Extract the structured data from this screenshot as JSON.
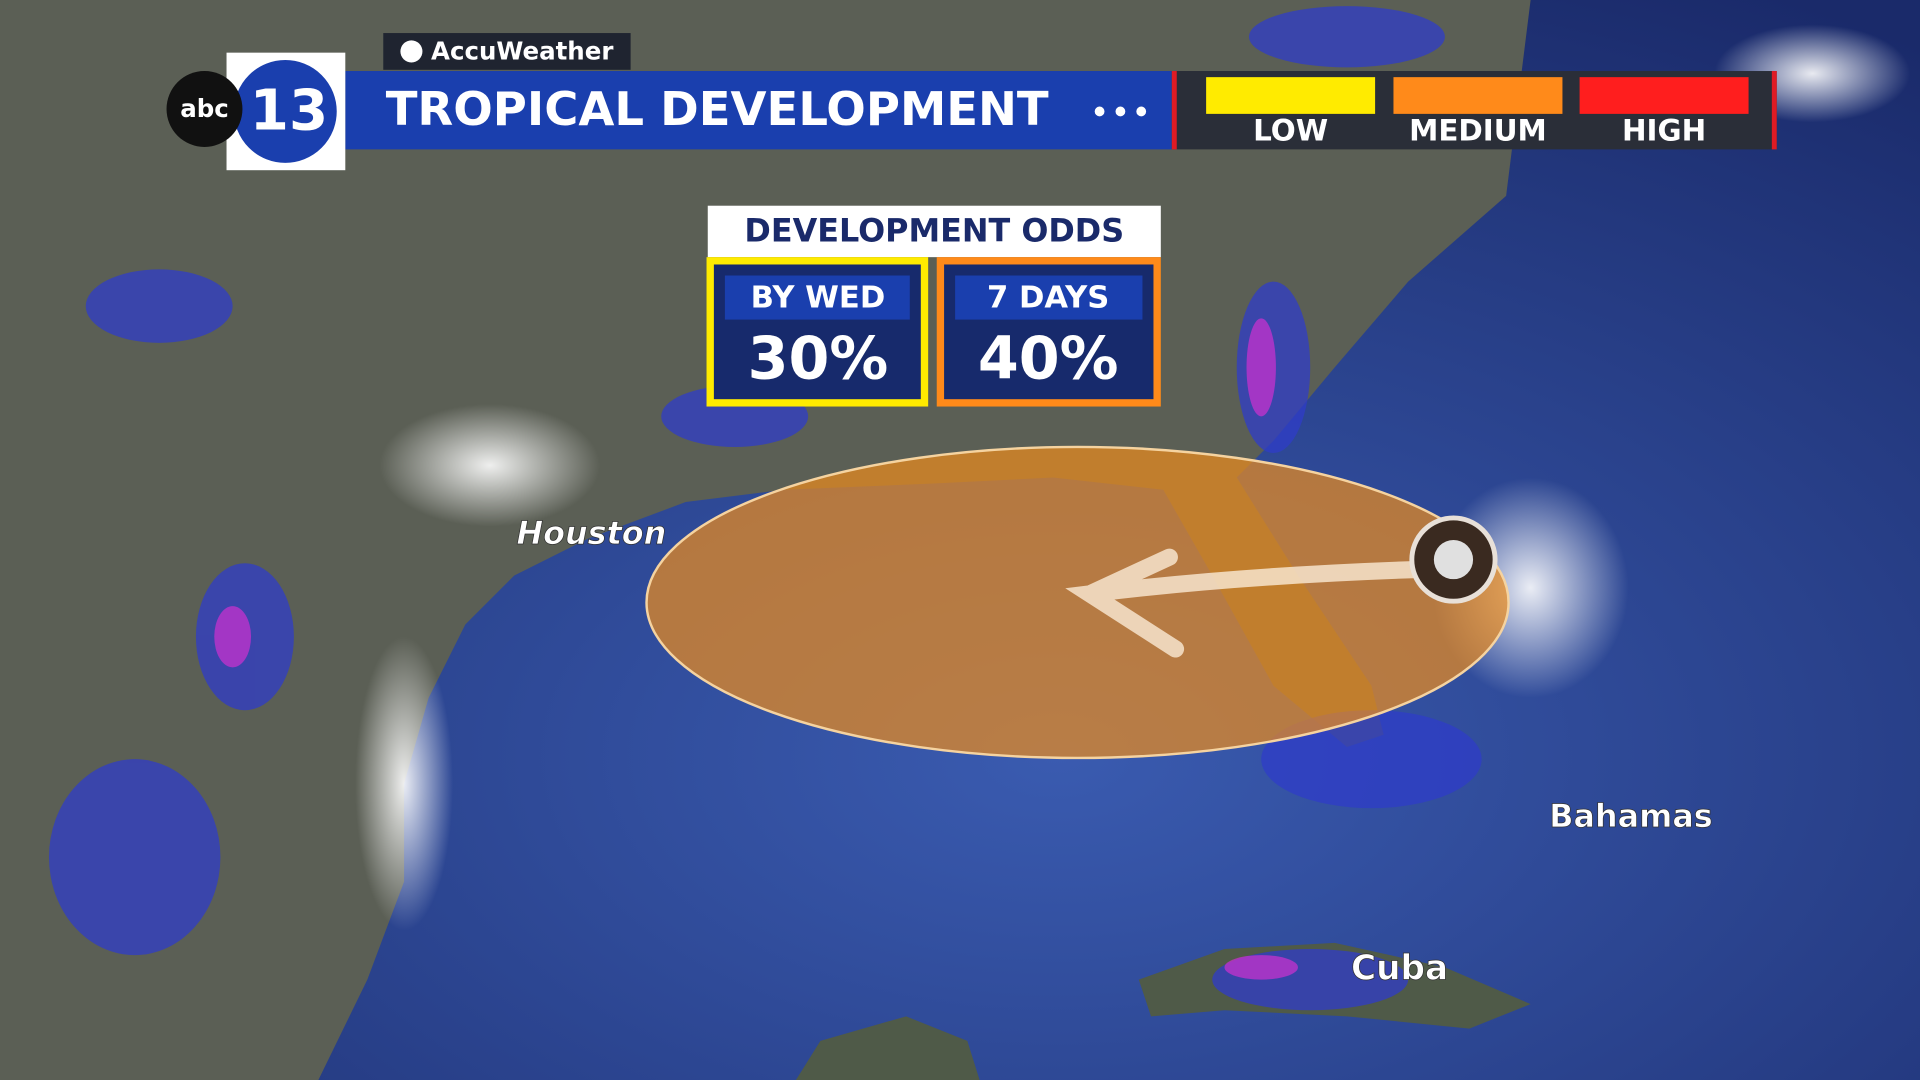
{
  "header": {
    "logo_network": "abc",
    "logo_channel": "13",
    "sponsor": "AccuWeather",
    "title": "TROPICAL DEVELOPMENT",
    "legend": [
      "LOW",
      "MEDIUM",
      "HIGH"
    ]
  },
  "odds": {
    "title": "DEVELOPMENT ODDS",
    "boxes": [
      {
        "label": "BY WED",
        "value": "30%"
      },
      {
        "label": "7 DAYS",
        "value": "40%"
      }
    ]
  },
  "map_labels": [
    "Houston",
    "Bahamas",
    "Cuba"
  ]
}
